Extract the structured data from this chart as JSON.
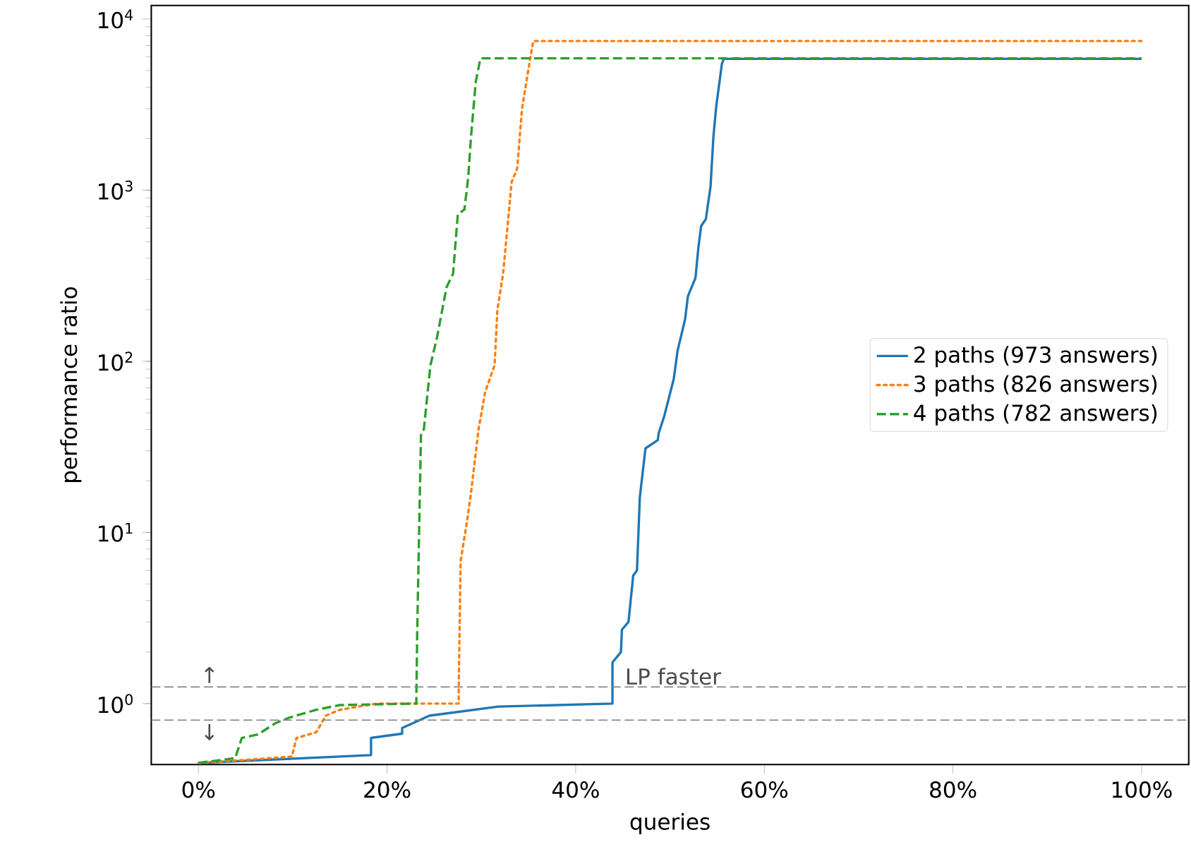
{
  "chart_data": {
    "type": "line",
    "xlabel": "queries",
    "ylabel": "performance ratio",
    "log": "y",
    "legend": "right",
    "grid": false,
    "xlim": [
      -5,
      105
    ],
    "ylim": [
      0.44,
      12000
    ],
    "xticks": [
      {
        "value": 0,
        "label": "0%"
      },
      {
        "value": 20,
        "label": "20%"
      },
      {
        "value": 40,
        "label": "40%"
      },
      {
        "value": 60,
        "label": "60%"
      },
      {
        "value": 80,
        "label": "80%"
      },
      {
        "value": 100,
        "label": "100%"
      }
    ],
    "yticks": [
      {
        "value": 1,
        "label": "10$^{0}$"
      },
      {
        "value": 10,
        "label": "10$^{1}$"
      },
      {
        "value": 100,
        "label": "10$^{2}$"
      },
      {
        "value": 1000,
        "label": "10$^{3}$"
      },
      {
        "value": 10000,
        "label": "10$^{4}$"
      }
    ],
    "ref_lines": [
      {
        "axis": "y",
        "value": 1.25,
        "label": "LP faster",
        "color": "#808080",
        "line_style": "dashed"
      },
      {
        "axis": "y",
        "value": 0.8,
        "color": "#808080",
        "line_style": "dashed"
      }
    ],
    "annotations": [
      "↑",
      "↓"
    ],
    "series": [
      {
        "name": "2 paths (973 answers)",
        "color": "#1f77b4",
        "line_style": "solid",
        "x": [
          0,
          18.3,
          18.3,
          21.6,
          21.6,
          24.5,
          31.8,
          43.9,
          43.9,
          44.8,
          44.9,
          45.6,
          46.1,
          46.5,
          46.8,
          47.4,
          48.7,
          48.8,
          49.4,
          50.4,
          50.8,
          51.6,
          51.9,
          52.7,
          53.0,
          53.3,
          53.8,
          54.3,
          54.6,
          54.9,
          55.5,
          55.7,
          100
        ],
        "values": [
          0.45,
          0.5,
          0.63,
          0.667,
          0.72,
          0.85,
          0.96,
          1.0,
          1.74,
          2.0,
          2.7,
          3.0,
          5.6,
          6.0,
          16,
          31,
          34.6,
          38,
          48,
          79,
          115,
          176,
          240,
          307,
          457,
          617,
          677,
          1050,
          2040,
          3080,
          5460,
          5850,
          5850
        ]
      },
      {
        "name": "3 paths (826 answers)",
        "color": "#ff7f0e",
        "line_style": "dotted",
        "x": [
          0,
          5.3,
          9.9,
          10.4,
          12.5,
          13.5,
          15,
          17.4,
          19,
          27.6,
          27.6,
          27.8,
          28.5,
          28.9,
          29.7,
          30.4,
          31.4,
          31.7,
          32.3,
          32.8,
          33.2,
          33.8,
          34.3,
          35.0,
          35.5,
          100
        ],
        "values": [
          0.45,
          0.47,
          0.49,
          0.63,
          0.68,
          0.85,
          0.92,
          0.97,
          1.0,
          1.0,
          1.25,
          6.8,
          11.8,
          17,
          40,
          66,
          95,
          199,
          325,
          636,
          1110,
          1340,
          2960,
          5130,
          7440,
          7440
        ]
      },
      {
        "name": "4 paths (782 answers)",
        "color": "#2ca02c",
        "line_style": "dashed",
        "x": [
          0,
          3.9,
          4.6,
          6.3,
          8.2,
          9.7,
          12.5,
          15,
          23.1,
          23.2,
          23.6,
          23.9,
          24.6,
          25.3,
          26.3,
          27.0,
          27.5,
          28.2,
          28.6,
          28.9,
          29.4,
          29.9,
          100
        ],
        "values": [
          0.45,
          0.48,
          0.63,
          0.66,
          0.77,
          0.83,
          0.92,
          0.98,
          1.0,
          2.7,
          38,
          40,
          95,
          138,
          270,
          325,
          722,
          770,
          1180,
          2040,
          4290,
          5890,
          5890
        ]
      }
    ]
  }
}
